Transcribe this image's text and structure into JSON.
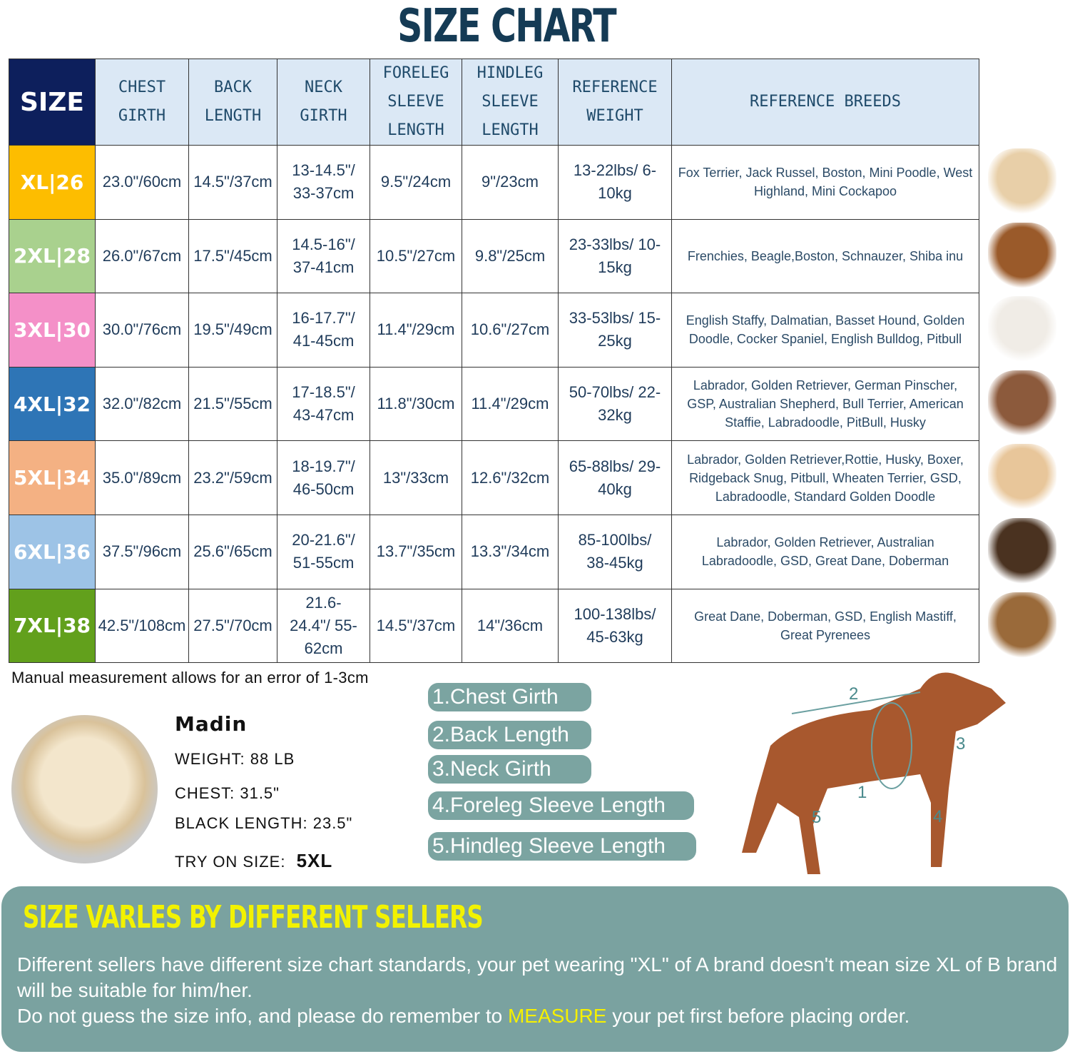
{
  "title": "SIZE CHART",
  "headers": [
    "SIZE",
    "CHEST GIRTH",
    "BACK LENGTH",
    "NECK GIRTH",
    "FORELEG SLEEVE LENGTH",
    "HINDLEG SLEEVE LENGTH",
    "REFERENCE WEIGHT",
    "REFERENCE BREEDS"
  ],
  "rows": [
    {
      "size": "XL|26",
      "color": "#fdbd00",
      "chest": "23.0\"/60cm",
      "back": "14.5\"/37cm",
      "neck": "13-14.5\"/ 33-37cm",
      "foreleg": "9.5\"/24cm",
      "hindleg": "9\"/23cm",
      "weight": "13-22lbs/ 6-10kg",
      "breeds": "Fox Terrier, Jack Russel, Boston, Mini Poodle, West Highland, Mini Cockapoo"
    },
    {
      "size": "2XL|28",
      "color": "#a9d18e",
      "chest": "26.0\"/67cm",
      "back": "17.5\"/45cm",
      "neck": "14.5-16\"/ 37-41cm",
      "foreleg": "10.5\"/27cm",
      "hindleg": "9.8\"/25cm",
      "weight": "23-33lbs/ 10-15kg",
      "breeds": "Frenchies, Beagle,Boston, Schnauzer, Shiba inu"
    },
    {
      "size": "3XL|30",
      "color": "#f490c8",
      "chest": "30.0\"/76cm",
      "back": "19.5\"/49cm",
      "neck": "16-17.7\"/ 41-45cm",
      "foreleg": "11.4\"/29cm",
      "hindleg": "10.6\"/27cm",
      "weight": "33-53lbs/ 15-25kg",
      "breeds": "English Staffy, Dalmatian, Basset Hound, Golden Doodle, Cocker Spaniel, English Bulldog, Pitbull"
    },
    {
      "size": "4XL|32",
      "color": "#2e75b6",
      "chest": "32.0\"/82cm",
      "back": "21.5\"/55cm",
      "neck": "17-18.5\"/ 43-47cm",
      "foreleg": "11.8\"/30cm",
      "hindleg": "11.4\"/29cm",
      "weight": "50-70lbs/ 22-32kg",
      "breeds": "Labrador, Golden Retriever, German Pinscher, GSP, Australian Shepherd, Bull Terrier, American Staffie, Labradoodle, PitBull, Husky"
    },
    {
      "size": "5XL|34",
      "color": "#f4b183",
      "chest": "35.0\"/89cm",
      "back": "23.2\"/59cm",
      "neck": "18-19.7\"/ 46-50cm",
      "foreleg": "13\"/33cm",
      "hindleg": "12.6\"/32cm",
      "weight": "65-88lbs/ 29-40kg",
      "breeds": "Labrador, Golden Retriever,Rottie, Husky, Boxer, Ridgeback Snug, Pitbull, Wheaten Terrier, GSD, Labradoodle,  Standard Golden Doodle"
    },
    {
      "size": "6XL|36",
      "color": "#9dc3e6",
      "chest": "37.5\"/96cm",
      "back": "25.6\"/65cm",
      "neck": "20-21.6\"/ 51-55cm",
      "foreleg": "13.7\"/35cm",
      "hindleg": "13.3\"/34cm",
      "weight": "85-100lbs/ 38-45kg",
      "breeds": "Labrador, Golden Retriever, Australian Labradoodle, GSD, Great Dane, Doberman"
    },
    {
      "size": "7XL|38",
      "color": "#62a01c",
      "chest": "42.5\"/108cm",
      "back": "27.5\"/70cm",
      "neck": "21.6-24.4\"/ 55-62cm",
      "foreleg": "14.5\"/37cm",
      "hindleg": "14\"/36cm",
      "weight": "100-138lbs/ 45-63kg",
      "breeds": "Great Dane, Doberman, GSD, English Mastiff, Great Pyrenees"
    }
  ],
  "note": "Manual measurement allows for an error of 1-3cm",
  "example": {
    "name": "Madin",
    "weight": "WEIGHT: 88 LB",
    "chest": "CHEST: 31.5\"",
    "length": "BLACK LENGTH: 23.5\"",
    "try_label": "TRY ON SIZE:",
    "try_size": "5XL"
  },
  "measures": [
    "1.Chest Girth",
    "2.Back Length",
    "3.Neck Girth",
    "4.Foreleg Sleeve Length",
    "5.Hindleg Sleeve Length"
  ],
  "diagram_numbers": [
    "1",
    "2",
    "3",
    "4",
    "5"
  ],
  "panel": {
    "title": "SIZE VARLES BY DIFFERENT SELLERS",
    "line1": "Different sellers have different size chart standards, your pet wearing \"XL\" of A brand doesn't mean size  XL of B brand will be suitable for him/her.",
    "line2a": "Do not guess the size info, and please do remember to ",
    "line2b": "MEASURE",
    "line2c": " your pet first before placing order."
  }
}
